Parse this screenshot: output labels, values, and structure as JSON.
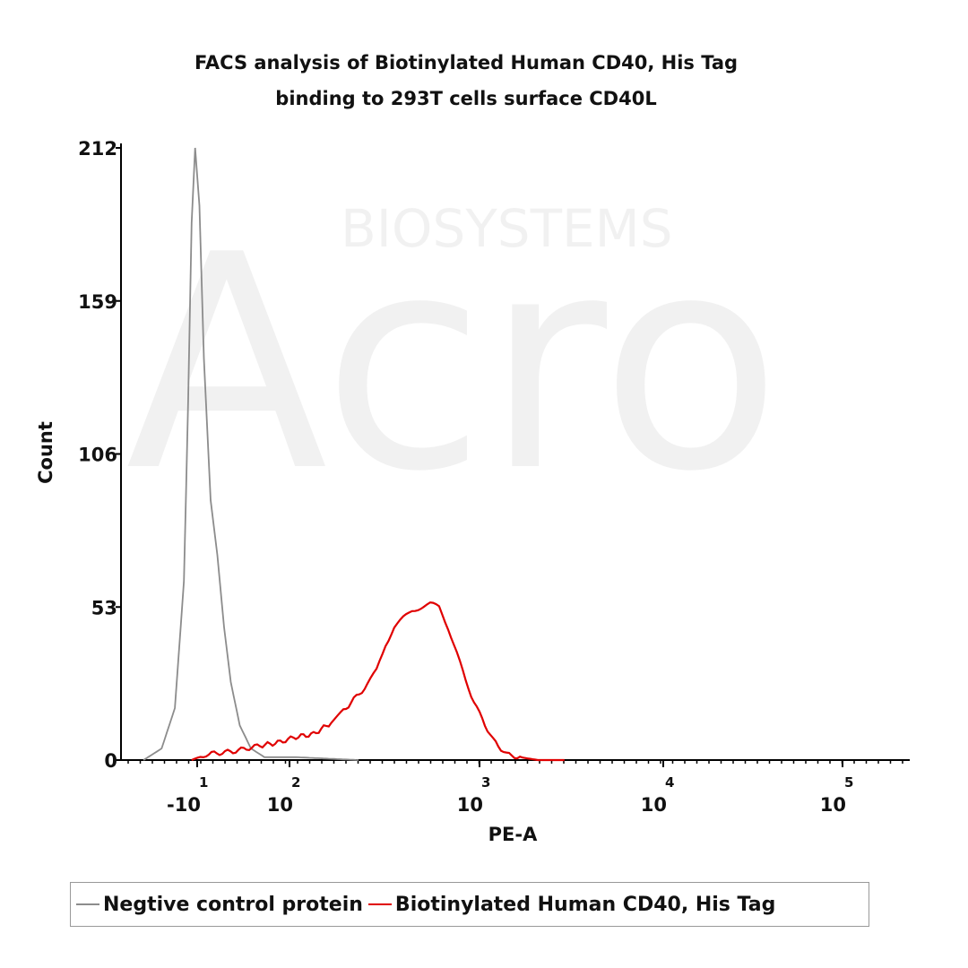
{
  "chart_data": {
    "type": "line",
    "title": [
      "FACS analysis of Biotinylated Human CD40, His Tag",
      "binding to 293T cells surface CD40L"
    ],
    "xlabel": "PE-A",
    "ylabel": "Count",
    "x_scale": "biexponential",
    "x_ticks": [
      {
        "base": "-10",
        "exp": "1",
        "value": -10
      },
      {
        "base": "10",
        "exp": "2",
        "value": 100
      },
      {
        "base": "10",
        "exp": "3",
        "value": 1000
      },
      {
        "base": "10",
        "exp": "4",
        "value": 10000
      },
      {
        "base": "10",
        "exp": "5",
        "value": 100000
      }
    ],
    "y_ticks": [
      "0",
      "53",
      "106",
      "159",
      "212"
    ],
    "ylim": [
      0,
      212
    ],
    "grid": false,
    "legend_position": "bottom",
    "watermark": "Acro BIOSYSTEMS",
    "series": [
      {
        "name": "Negtive control protein",
        "color": "#8c8c8c",
        "x": [
          -87,
          -61,
          -42,
          -29,
          -23,
          -18,
          -13,
          -9,
          -7,
          -4,
          -1,
          2,
          5,
          9,
          18,
          30,
          108,
          231
        ],
        "y": [
          0,
          4,
          18,
          62,
          124,
          186,
          212,
          192,
          139,
          90,
          71,
          46,
          27,
          12,
          4,
          1,
          1,
          0
        ]
      },
      {
        "name": "Biotinylated Human CD40, His Tag",
        "color": "#e00000",
        "x": [
          -18,
          -6,
          6,
          26,
          67,
          108,
          134,
          166,
          186,
          218,
          257,
          287,
          320,
          356,
          397,
          442,
          493,
          550,
          613,
          683,
          760,
          847,
          1000,
          1184,
          1400,
          1660,
          2075,
          2900
        ],
        "y": [
          0,
          2,
          3,
          5,
          6,
          8,
          9,
          13,
          16,
          21,
          26,
          31,
          40,
          46,
          49,
          52,
          53,
          54,
          53,
          46,
          37,
          27,
          16,
          7,
          2,
          1,
          0,
          0
        ]
      }
    ]
  }
}
